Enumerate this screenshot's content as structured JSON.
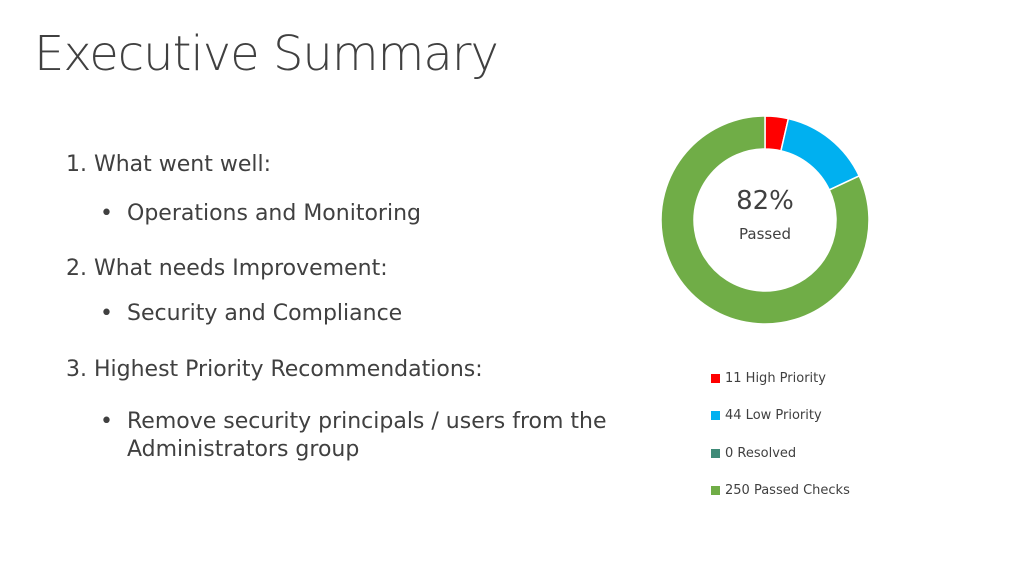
{
  "slide": {
    "title": "Executive Summary",
    "sections": [
      {
        "heading": "1. What went well:",
        "bullet": "Operations and Monitoring"
      },
      {
        "heading": "2. What needs Improvement:",
        "bullet": "Security and Compliance"
      },
      {
        "heading": "3. Highest Priority Recommendations:",
        "bullet": "Remove security principals / users from the Administrators group"
      }
    ],
    "bullet_glyph": "•"
  },
  "chart_data": {
    "type": "pie",
    "donut": true,
    "center_value": "82%",
    "center_label": "Passed",
    "legend_position": "bottom",
    "categories": [
      "11 High Priority",
      "44 Low Priority",
      "0 Resolved",
      "250 Passed Checks"
    ],
    "values": [
      11,
      44,
      0,
      250
    ],
    "colors": [
      "#ff0000",
      "#00b0f0",
      "#3e8a77",
      "#70ad47"
    ]
  }
}
